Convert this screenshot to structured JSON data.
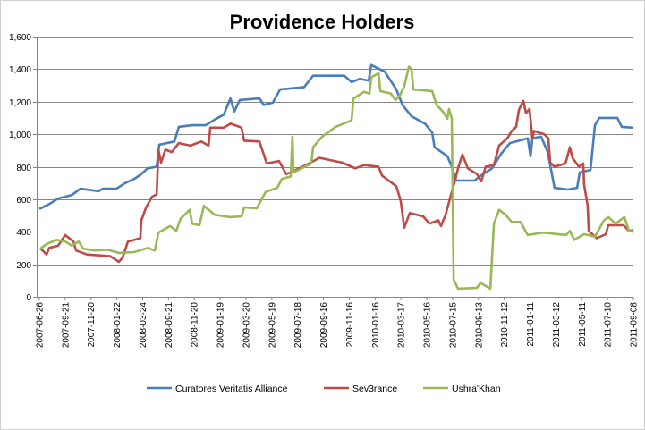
{
  "chart_data": {
    "type": "line",
    "title": "Providence Holders",
    "xlabel": "",
    "ylabel": "",
    "ylim": [
      0,
      1600
    ],
    "yticks": [
      0,
      200,
      400,
      600,
      800,
      1000,
      1200,
      1400,
      1600
    ],
    "ytick_labels": [
      "0",
      "200",
      "400",
      "600",
      "800",
      "1,000",
      "1,200",
      "1,400",
      "1,600"
    ],
    "categories": [
      "2007-06-26",
      "2007-09-21",
      "2007-11-20",
      "2008-01-22",
      "2008-03-24",
      "2008-09-21",
      "2008-11-20",
      "2009-01-19",
      "2009-03-20",
      "2009-05-19",
      "2009-07-18",
      "2009-09-16",
      "2009-11-16",
      "2010-01-16",
      "2010-03-17",
      "2010-05-16",
      "2010-07-15",
      "2010-09-13",
      "2010-11-12",
      "2011-01-11",
      "2011-03-12",
      "2011-05-11",
      "2011-07-10",
      "2011-09-08"
    ],
    "grid": true,
    "legend_position": "bottom",
    "point_format": "[category index position, value]",
    "series": [
      {
        "name": "Curatores Veritatis Alliance",
        "color": "#4a7ebb",
        "points": [
          [
            0,
            540
          ],
          [
            0.38,
            570
          ],
          [
            0.73,
            605
          ],
          [
            1.25,
            625
          ],
          [
            1.59,
            665
          ],
          [
            2.29,
            650
          ],
          [
            2.46,
            665
          ],
          [
            2.98,
            665
          ],
          [
            3.33,
            700
          ],
          [
            3.67,
            725
          ],
          [
            3.91,
            750
          ],
          [
            4.19,
            790
          ],
          [
            4.54,
            800
          ],
          [
            4.64,
            935
          ],
          [
            5.23,
            955
          ],
          [
            5.4,
            1045
          ],
          [
            5.92,
            1055
          ],
          [
            6.44,
            1055
          ],
          [
            6.79,
            1090
          ],
          [
            7.14,
            1120
          ],
          [
            7.4,
            1220
          ],
          [
            7.55,
            1140
          ],
          [
            7.76,
            1210
          ],
          [
            8.52,
            1220
          ],
          [
            8.69,
            1180
          ],
          [
            9.04,
            1195
          ],
          [
            9.32,
            1275
          ],
          [
            10.25,
            1290
          ],
          [
            10.6,
            1360
          ],
          [
            11.81,
            1360
          ],
          [
            12.09,
            1320
          ],
          [
            12.4,
            1340
          ],
          [
            12.75,
            1330
          ],
          [
            12.85,
            1425
          ],
          [
            13.37,
            1385
          ],
          [
            13.72,
            1300
          ],
          [
            13.82,
            1275
          ],
          [
            14.06,
            1180
          ],
          [
            14.41,
            1110
          ],
          [
            14.93,
            1065
          ],
          [
            15.21,
            1010
          ],
          [
            15.3,
            920
          ],
          [
            15.8,
            865
          ],
          [
            15.97,
            800
          ],
          [
            16.14,
            715
          ],
          [
            16.84,
            715
          ],
          [
            17.18,
            755
          ],
          [
            17.53,
            790
          ],
          [
            17.88,
            880
          ],
          [
            18.22,
            945
          ],
          [
            18.91,
            975
          ],
          [
            19.02,
            865
          ],
          [
            19.09,
            975
          ],
          [
            19.43,
            985
          ],
          [
            19.68,
            890
          ],
          [
            19.95,
            670
          ],
          [
            20.47,
            660
          ],
          [
            20.82,
            670
          ],
          [
            20.92,
            765
          ],
          [
            21.34,
            780
          ],
          [
            21.51,
            1055
          ],
          [
            21.68,
            1100
          ],
          [
            22.38,
            1100
          ],
          [
            22.55,
            1045
          ],
          [
            23,
            1040
          ]
        ]
      },
      {
        "name": "Sev3rance",
        "color": "#be4b48",
        "points": [
          [
            0.03,
            300
          ],
          [
            0.28,
            260
          ],
          [
            0.38,
            300
          ],
          [
            0.73,
            315
          ],
          [
            1.0,
            380
          ],
          [
            1.32,
            340
          ],
          [
            1.42,
            285
          ],
          [
            1.84,
            260
          ],
          [
            2.74,
            250
          ],
          [
            3.08,
            215
          ],
          [
            3.22,
            240
          ],
          [
            3.43,
            340
          ],
          [
            3.91,
            360
          ],
          [
            3.95,
            470
          ],
          [
            4.12,
            545
          ],
          [
            4.36,
            615
          ],
          [
            4.54,
            630
          ],
          [
            4.61,
            905
          ],
          [
            4.71,
            825
          ],
          [
            4.88,
            905
          ],
          [
            5.13,
            890
          ],
          [
            5.4,
            945
          ],
          [
            5.85,
            930
          ],
          [
            6.27,
            955
          ],
          [
            6.55,
            930
          ],
          [
            6.62,
            1040
          ],
          [
            7.14,
            1040
          ],
          [
            7.41,
            1065
          ],
          [
            7.83,
            1040
          ],
          [
            7.93,
            960
          ],
          [
            8.52,
            955
          ],
          [
            8.69,
            875
          ],
          [
            8.8,
            820
          ],
          [
            9.28,
            835
          ],
          [
            9.56,
            755
          ],
          [
            9.8,
            770
          ],
          [
            10.5,
            825
          ],
          [
            10.84,
            855
          ],
          [
            11.74,
            825
          ],
          [
            12.23,
            790
          ],
          [
            12.57,
            810
          ],
          [
            13.13,
            800
          ],
          [
            13.27,
            745
          ],
          [
            13.82,
            680
          ],
          [
            13.99,
            590
          ],
          [
            14.13,
            425
          ],
          [
            14.34,
            515
          ],
          [
            14.86,
            495
          ],
          [
            15.1,
            450
          ],
          [
            15.45,
            470
          ],
          [
            15.55,
            435
          ],
          [
            15.73,
            505
          ],
          [
            15.9,
            605
          ],
          [
            16.07,
            700
          ],
          [
            16.21,
            790
          ],
          [
            16.38,
            875
          ],
          [
            16.59,
            790
          ],
          [
            16.94,
            755
          ],
          [
            17.11,
            710
          ],
          [
            17.28,
            800
          ],
          [
            17.6,
            810
          ],
          [
            17.8,
            930
          ],
          [
            18.12,
            975
          ],
          [
            18.29,
            1020
          ],
          [
            18.46,
            1045
          ],
          [
            18.57,
            1150
          ],
          [
            18.74,
            1205
          ],
          [
            18.84,
            1130
          ],
          [
            18.98,
            1155
          ],
          [
            19.09,
            975
          ],
          [
            19.15,
            1020
          ],
          [
            19.54,
            1000
          ],
          [
            19.71,
            975
          ],
          [
            19.78,
            825
          ],
          [
            19.95,
            800
          ],
          [
            20.37,
            820
          ],
          [
            20.54,
            920
          ],
          [
            20.64,
            855
          ],
          [
            20.89,
            800
          ],
          [
            21.06,
            820
          ],
          [
            21.09,
            690
          ],
          [
            21.23,
            560
          ],
          [
            21.27,
            405
          ],
          [
            21.58,
            360
          ],
          [
            21.93,
            385
          ],
          [
            22.03,
            440
          ],
          [
            22.62,
            440
          ],
          [
            22.83,
            405
          ],
          [
            23,
            410
          ]
        ]
      },
      {
        "name": "Ushra'Khan",
        "color": "#98b954",
        "points": [
          [
            0.03,
            295
          ],
          [
            0.28,
            325
          ],
          [
            0.66,
            350
          ],
          [
            1.0,
            340
          ],
          [
            1.25,
            315
          ],
          [
            1.52,
            340
          ],
          [
            1.7,
            295
          ],
          [
            2.18,
            285
          ],
          [
            2.63,
            290
          ],
          [
            3.08,
            270
          ],
          [
            3.67,
            275
          ],
          [
            4.19,
            300
          ],
          [
            4.47,
            285
          ],
          [
            4.61,
            395
          ],
          [
            5.06,
            435
          ],
          [
            5.3,
            405
          ],
          [
            5.47,
            480
          ],
          [
            5.82,
            535
          ],
          [
            5.92,
            450
          ],
          [
            6.2,
            440
          ],
          [
            6.37,
            560
          ],
          [
            6.79,
            505
          ],
          [
            7.38,
            490
          ],
          [
            7.83,
            495
          ],
          [
            7.93,
            550
          ],
          [
            8.42,
            545
          ],
          [
            8.76,
            645
          ],
          [
            9.21,
            670
          ],
          [
            9.39,
            725
          ],
          [
            9.73,
            740
          ],
          [
            9.8,
            985
          ],
          [
            9.84,
            765
          ],
          [
            10.53,
            820
          ],
          [
            10.6,
            920
          ],
          [
            10.95,
            985
          ],
          [
            11.47,
            1045
          ],
          [
            12.09,
            1085
          ],
          [
            12.16,
            1220
          ],
          [
            12.57,
            1260
          ],
          [
            12.78,
            1250
          ],
          [
            12.85,
            1350
          ],
          [
            13.13,
            1375
          ],
          [
            13.2,
            1265
          ],
          [
            13.61,
            1250
          ],
          [
            13.79,
            1210
          ],
          [
            13.96,
            1240
          ],
          [
            14.13,
            1295
          ],
          [
            14.31,
            1415
          ],
          [
            14.41,
            1400
          ],
          [
            14.48,
            1275
          ],
          [
            15.21,
            1265
          ],
          [
            15.38,
            1180
          ],
          [
            15.62,
            1140
          ],
          [
            15.8,
            1095
          ],
          [
            15.86,
            1155
          ],
          [
            15.97,
            1095
          ],
          [
            16.04,
            105
          ],
          [
            16.21,
            50
          ],
          [
            16.94,
            55
          ],
          [
            17.08,
            85
          ],
          [
            17.46,
            50
          ],
          [
            17.6,
            450
          ],
          [
            17.8,
            535
          ],
          [
            18.05,
            505
          ],
          [
            18.29,
            460
          ],
          [
            18.63,
            460
          ],
          [
            18.91,
            380
          ],
          [
            19.5,
            395
          ],
          [
            20.4,
            380
          ],
          [
            20.54,
            405
          ],
          [
            20.71,
            350
          ],
          [
            21.09,
            385
          ],
          [
            21.51,
            370
          ],
          [
            21.86,
            470
          ],
          [
            22.03,
            490
          ],
          [
            22.31,
            450
          ],
          [
            22.65,
            490
          ],
          [
            22.83,
            405
          ],
          [
            23,
            400
          ]
        ]
      }
    ]
  }
}
